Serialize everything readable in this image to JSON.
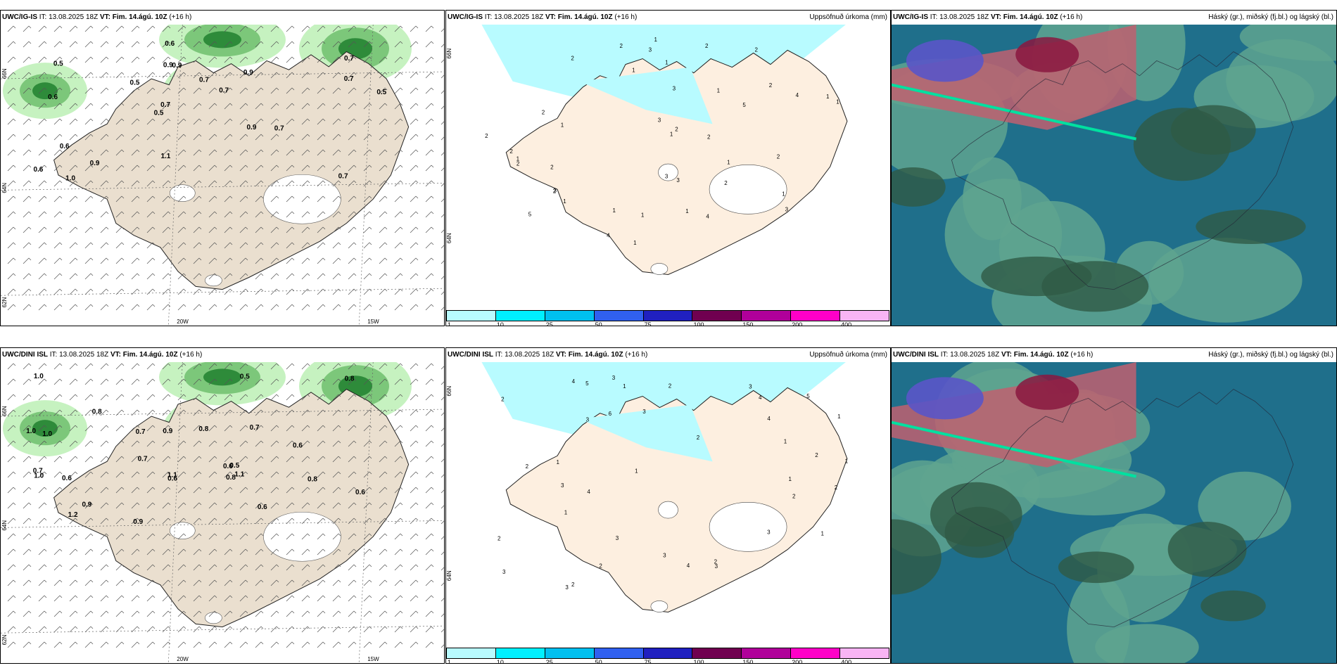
{
  "panels": [
    {
      "model": "UWC/IG-IS",
      "it_label": "IT:",
      "it": "13.08.2025 18Z",
      "vt_label": "VT:",
      "vt": "Fim. 14.ágú. 10Z",
      "lead": "(+16 h)",
      "title": "",
      "lon_labels": [
        "20W",
        "15W"
      ],
      "lat_labels": [
        "66N",
        "64N",
        "62N"
      ],
      "values": [
        "0.7",
        "0.6",
        "0.7",
        "0.5",
        "0.9",
        "1.0",
        "0.9",
        "0.7",
        "0.6",
        "0.5",
        "0.6",
        "0.9",
        "0.9",
        "0.7",
        "0.7",
        "0.5",
        "0.6",
        "0.5",
        "0.9",
        "0.7",
        "0.7",
        "1.1"
      ]
    },
    {
      "model": "UWC/IG-IS",
      "it_label": "IT:",
      "it": "13.08.2025 18Z",
      "vt_label": "VT:",
      "vt": "Fim. 14.ágú. 10Z",
      "lead": "(+16 h)",
      "title": "Uppsöfnuð úrkoma (mm)",
      "lat_labels": [
        "66N",
        "64N"
      ],
      "values": [
        "5",
        "2",
        "2",
        "2",
        "3",
        "1",
        "2",
        "3",
        "4",
        "5",
        "2",
        "1",
        "2",
        "1",
        "1",
        "2",
        "3",
        "2",
        "2",
        "4",
        "4",
        "3",
        "1",
        "2",
        "3",
        "1",
        "1",
        "2",
        "3",
        "1",
        "2",
        "1",
        "1",
        "3",
        "1",
        "2",
        "1",
        "2",
        "1",
        "2",
        "1",
        "1",
        "1"
      ]
    },
    {
      "model": "UWC/IG-IS",
      "it_label": "IT:",
      "it": "13.08.2025 18Z",
      "vt_label": "VT:",
      "vt": "Fim. 14.ágú. 10Z",
      "lead": "(+16 h)",
      "title": "Háský (gr.), miðský (fj.bl.) og lágský (bl.)"
    },
    {
      "model": "UWC/DINI ISL",
      "it_label": "IT:",
      "it": "13.08.2025 18Z",
      "vt_label": "VT:",
      "vt": "Fim. 14.ágú. 10Z",
      "lead": "(+16 h)",
      "title": "",
      "lon_labels": [
        "20W",
        "15W"
      ],
      "lat_labels": [
        "66N",
        "64N",
        "62N"
      ],
      "values": [
        "1.1",
        "1.0",
        "0.8",
        "0.8",
        "0.7",
        "0.9",
        "0.6",
        "0.5",
        "0.7",
        "0.8",
        "0.9",
        "1.0",
        "0.6",
        "1.1",
        "0.8",
        "0.6",
        "0.7",
        "1.0",
        "0.9",
        "0.8",
        "0.7",
        "0.6",
        "0.6",
        "1.2",
        "1.0",
        "0.5",
        "0.6"
      ]
    },
    {
      "model": "UWC/DINI ISL",
      "it_label": "IT:",
      "it": "13.08.2025 18Z",
      "vt_label": "VT:",
      "vt": "Fim. 14.ágú. 10Z",
      "lead": "(+16 h)",
      "title": "Uppsöfnuð úrkoma (mm)",
      "lat_labels": [
        "66N",
        "64N"
      ],
      "values": [
        "2",
        "3",
        "2",
        "1",
        "3",
        "3",
        "4",
        "5",
        "3",
        "2",
        "3",
        "4",
        "6",
        "3",
        "2",
        "1",
        "2",
        "2",
        "5",
        "3",
        "4",
        "2",
        "1",
        "3",
        "1",
        "4",
        "2",
        "3",
        "1",
        "2",
        "1",
        "1",
        "3",
        "2",
        "3",
        "4",
        "2",
        "1",
        "1"
      ]
    },
    {
      "model": "UWC/DINI ISL",
      "it_label": "IT:",
      "it": "13.08.2025 18Z",
      "vt_label": "VT:",
      "vt": "Fim. 14.ágú. 10Z",
      "lead": "(+16 h)",
      "title": "Háský (gr.), miðský (fj.bl.) og lágský (bl.)"
    }
  ],
  "colorbar": {
    "ticks": [
      "1",
      "10",
      "25",
      "50",
      "75",
      "100",
      "150",
      "200",
      "400"
    ],
    "colors": [
      "#b8fbff",
      "#00f0ff",
      "#00c0f0",
      "#3060f0",
      "#2020c0",
      "#700050",
      "#b0009a",
      "#ff00c8",
      "#f8b4f4"
    ]
  }
}
